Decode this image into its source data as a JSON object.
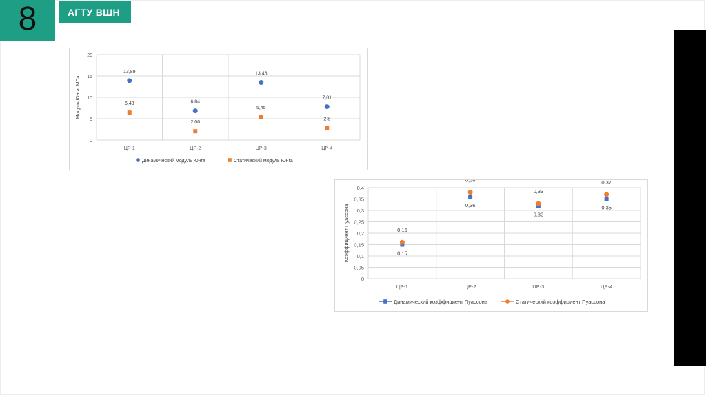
{
  "slide": {
    "page_number": "8",
    "header_label": "АГТУ ВШН"
  },
  "colors": {
    "accent": "#1f9e86",
    "blue": "#4472c4",
    "orange": "#ed7d31"
  },
  "chart_data": [
    {
      "type": "scatter",
      "categories": [
        "ЦР-1",
        "ЦР-2",
        "ЦР-3",
        "ЦР-4"
      ],
      "ylabel": "Модуль Юнга, МПа",
      "ylim": [
        0,
        20
      ],
      "yticks": [
        "0",
        "5",
        "10",
        "15",
        "20"
      ],
      "ytick_values": [
        0,
        5,
        10,
        15,
        20
      ],
      "grid": true,
      "legend": "bottom",
      "series": [
        {
          "name": "Динамический модуль Юнга",
          "marker": "circle",
          "color": "#4472c4",
          "values": [
            13.89,
            6.84,
            13.46,
            7.81
          ],
          "labels": [
            "13,89",
            "6,84",
            "13,46",
            "7,81"
          ]
        },
        {
          "name": "Статический модуль Юнга",
          "marker": "square",
          "color": "#ed7d31",
          "values": [
            6.43,
            2.06,
            5.45,
            2.8
          ],
          "labels": [
            "6,43",
            "2,06",
            "5,45",
            "2,8"
          ]
        }
      ]
    },
    {
      "type": "scatter",
      "categories": [
        "ЦР-1",
        "ЦР-2",
        "ЦР-3",
        "ЦР-4"
      ],
      "ylabel": "Коэффициент Пуассона",
      "ylim": [
        0,
        0.4
      ],
      "yticks": [
        "0",
        "0,05",
        "0,1",
        "0,15",
        "0,2",
        "0,25",
        "0,3",
        "0,35",
        "0,4"
      ],
      "ytick_values": [
        0,
        0.05,
        0.1,
        0.15,
        0.2,
        0.25,
        0.3,
        0.35,
        0.4
      ],
      "grid": true,
      "legend": "bottom",
      "series": [
        {
          "name": "Динамический коэффициент Пуассона",
          "marker": "square",
          "color": "#4472c4",
          "values": [
            0.15,
            0.36,
            0.32,
            0.35
          ],
          "labels": [
            "0,15",
            "0,36",
            "0,32",
            "0,35"
          ]
        },
        {
          "name": "Статический коэффициент Пуассона",
          "marker": "circle",
          "color": "#ed7d31",
          "values": [
            0.16,
            0.38,
            0.33,
            0.37
          ],
          "labels": [
            "0,16",
            "0,38",
            "0,33",
            "0,37"
          ]
        }
      ]
    }
  ]
}
